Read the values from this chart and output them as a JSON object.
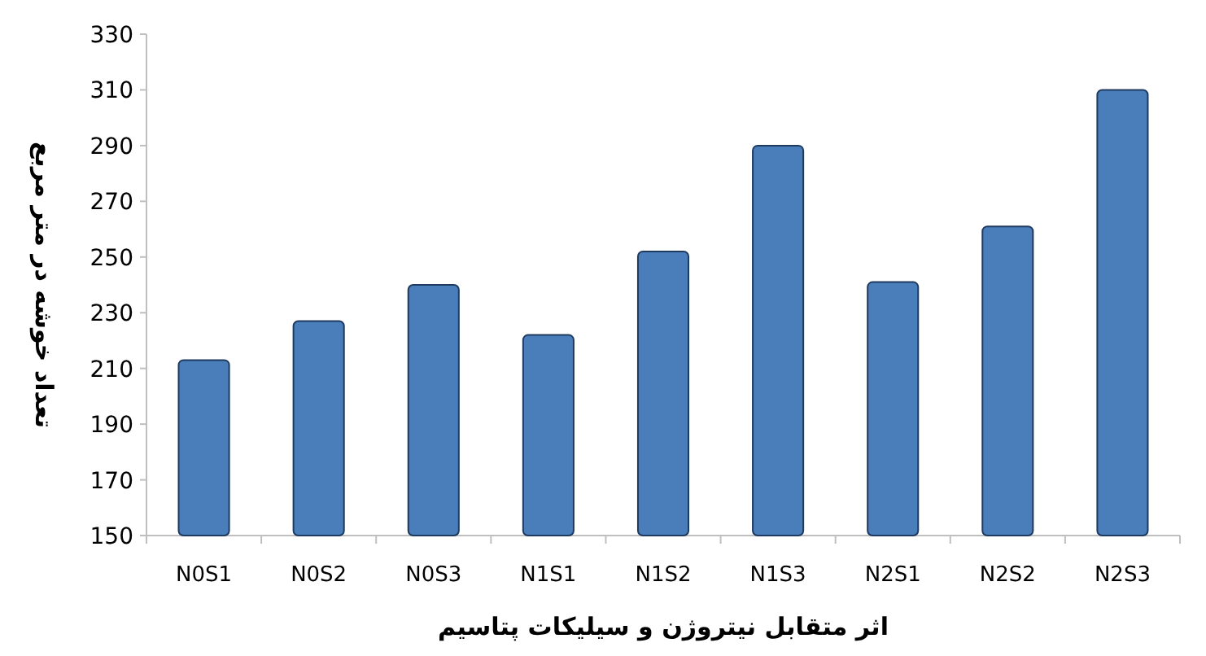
{
  "chart_data": {
    "type": "bar",
    "xlabel": "اثر متقابل نیتروژن و سیلیکات پتاسیم",
    "ylabel": "تعداد خوشه در متر مربع",
    "categories": [
      "N0S1",
      "N0S2",
      "N0S3",
      "N1S1",
      "N1S2",
      "N1S3",
      "N2S1",
      "N2S2",
      "N2S3"
    ],
    "values": [
      213,
      227,
      240,
      222,
      252,
      290,
      241,
      261,
      310
    ],
    "color": "#4a7ebb",
    "ylim": [
      150,
      330
    ],
    "yticks": [
      150,
      170,
      190,
      210,
      230,
      250,
      270,
      290,
      310,
      330
    ],
    "grid": false
  }
}
